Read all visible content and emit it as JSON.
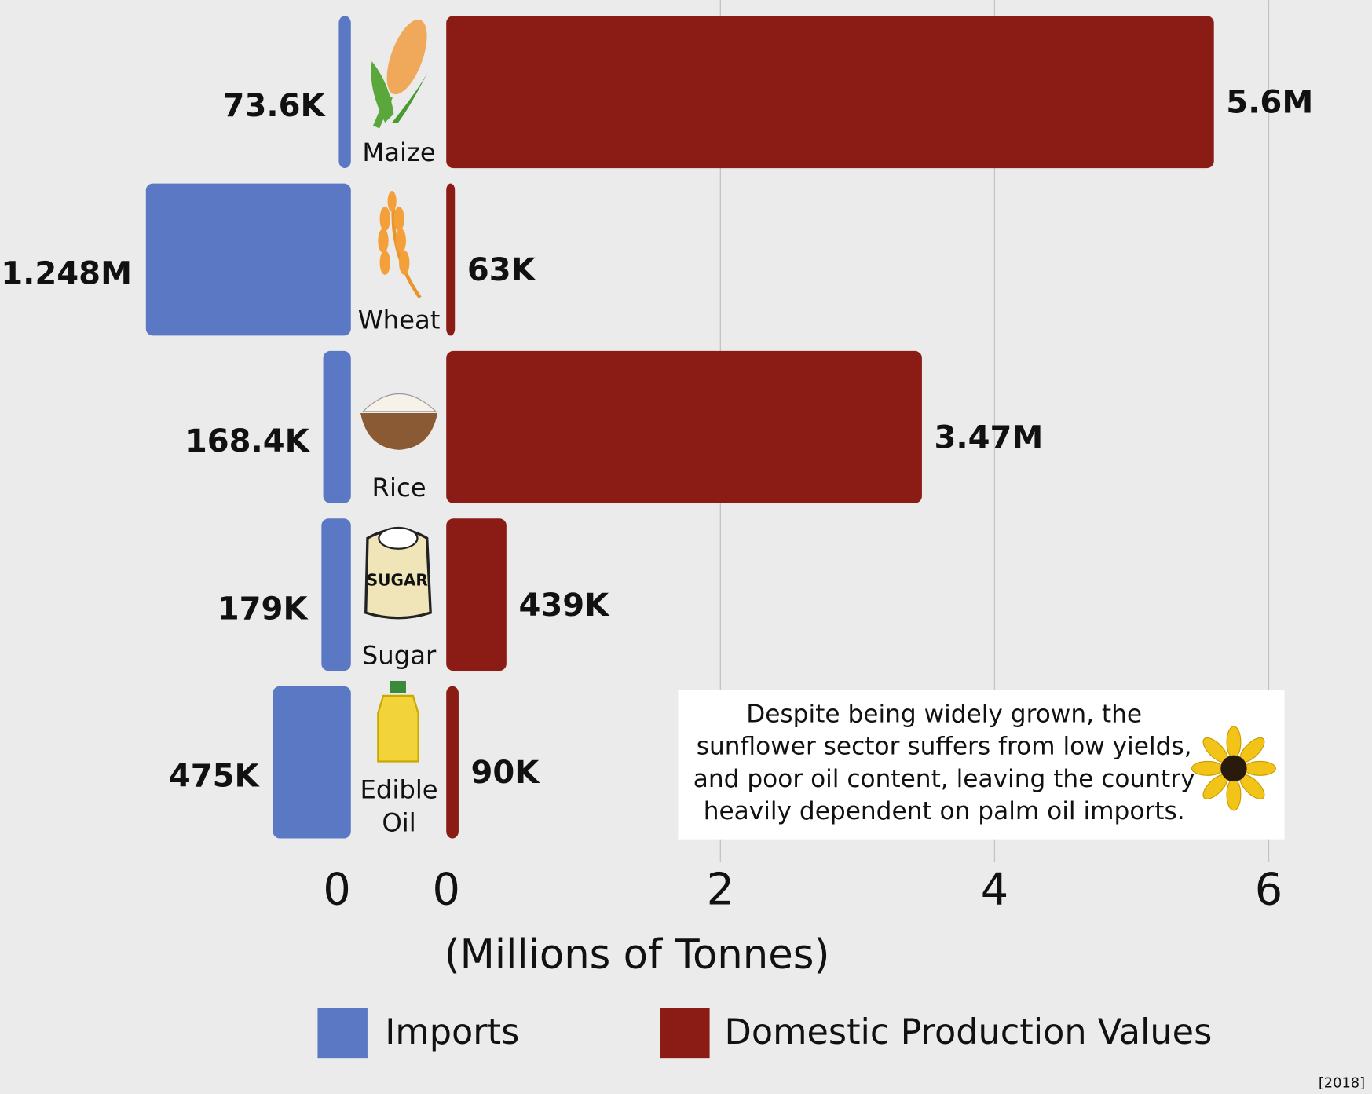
{
  "chart_data": {
    "type": "butterfly",
    "categories": [
      "Maize",
      "Wheat",
      "Rice",
      "Sugar",
      "Edible Oil"
    ],
    "series": [
      {
        "name": "Imports",
        "color": "#5a78c4",
        "side": "left",
        "values": [
          0.0736,
          1.248,
          0.1684,
          0.179,
          0.475
        ],
        "value_labels": [
          "73.6K",
          "1.248M",
          "168.4K",
          "179K",
          "475K"
        ],
        "xlim": [
          0,
          1.3
        ],
        "xticks": [
          0
        ]
      },
      {
        "name": "Domestic Production Values",
        "color": "#8b1c15",
        "side": "right",
        "values": [
          5.6,
          0.063,
          3.47,
          0.439,
          0.09
        ],
        "value_labels": [
          "5.6M",
          "63K",
          "3.47M",
          "439K",
          "90K"
        ],
        "xlim": [
          0,
          6
        ],
        "xticks": [
          0,
          2,
          4,
          6
        ]
      }
    ],
    "xlabel": "(Millions of Tonnes)",
    "annotation": [
      "Despite being widely grown, the",
      "sunflower sector suffers from low yields,",
      "and poor oil content, leaving the country",
      "heavily dependent on palm oil imports."
    ],
    "source": "[2018]",
    "grid": true
  }
}
